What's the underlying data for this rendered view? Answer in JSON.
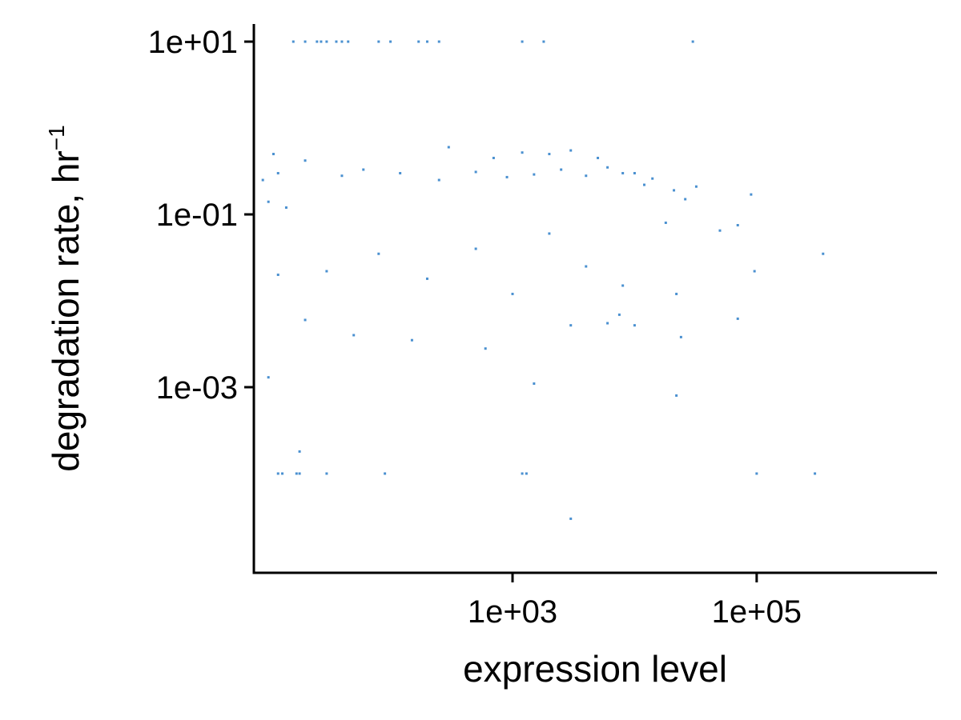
{
  "chart_data": {
    "type": "scatter",
    "xlabel": "expression level",
    "ylabel": "degradation rate, hr",
    "ylabel_superscript": "−1",
    "x_scale": "log10",
    "y_scale": "log10",
    "xlim": [
      7.6,
      3000000
    ],
    "ylim": [
      7.1e-06,
      16
    ],
    "x_ticks": [
      1000,
      100000
    ],
    "x_tick_labels": [
      "1e+03",
      "1e+05"
    ],
    "y_ticks": [
      0.001,
      0.1,
      10
    ],
    "y_tick_labels": [
      "1e-03",
      "1e-01",
      "1e+01"
    ],
    "point_color": "#4a90d0",
    "grid": false,
    "legend": "none",
    "series": [
      {
        "values": [
          [
            250,
            10
          ],
          [
            200,
            10
          ],
          [
            170,
            10
          ],
          [
            100,
            10
          ],
          [
            80,
            10
          ],
          [
            45,
            10
          ],
          [
            40,
            10
          ],
          [
            36,
            10
          ],
          [
            30,
            10
          ],
          [
            27,
            10
          ],
          [
            25,
            10
          ],
          [
            20,
            10
          ],
          [
            16,
            10
          ],
          [
            1200,
            10
          ],
          [
            1800,
            10
          ],
          [
            30000,
            10
          ],
          [
            12,
            0.0001
          ],
          [
            13,
            0.0001
          ],
          [
            17,
            0.0001
          ],
          [
            18,
            0.0001
          ],
          [
            30,
            0.0001
          ],
          [
            90,
            0.0001
          ],
          [
            1200,
            0.0001
          ],
          [
            1300,
            0.0001
          ],
          [
            300000.0,
            0.0001
          ],
          [
            100000.0,
            0.0001
          ],
          [
            3000,
            3e-05
          ],
          [
            18,
            0.00018
          ],
          [
            10,
            0.0013
          ],
          [
            1500,
            0.0011
          ],
          [
            22000,
            0.0008
          ],
          [
            350000.0,
            0.035
          ],
          [
            96000.0,
            0.022
          ],
          [
            70000.0,
            0.0062
          ],
          [
            50000.0,
            0.065
          ],
          [
            70000.0,
            0.075
          ],
          [
            90000.0,
            0.17
          ],
          [
            32000.0,
            0.21
          ],
          [
            26000.0,
            0.15
          ],
          [
            18000.0,
            0.08
          ],
          [
            22000.0,
            0.012
          ],
          [
            10000.0,
            0.0052
          ],
          [
            24000.0,
            0.0038
          ],
          [
            6000.0,
            0.0055
          ],
          [
            7500.0,
            0.0069
          ],
          [
            21000.0,
            0.19
          ],
          [
            10,
            0.14
          ],
          [
            14,
            0.12
          ],
          [
            12,
            0.3
          ],
          [
            11,
            0.5
          ],
          [
            9,
            0.25
          ],
          [
            40,
            0.28
          ],
          [
            60,
            0.33
          ],
          [
            120,
            0.3
          ],
          [
            250,
            0.25
          ],
          [
            500,
            0.31
          ],
          [
            900,
            0.27
          ],
          [
            1500,
            0.29
          ],
          [
            2500,
            0.33
          ],
          [
            4000,
            0.28
          ],
          [
            6000,
            0.35
          ],
          [
            8000,
            0.3
          ],
          [
            10000,
            0.3
          ],
          [
            12000,
            0.22
          ],
          [
            14000,
            0.26
          ],
          [
            20,
            0.42
          ],
          [
            300,
            0.6
          ],
          [
            700,
            0.45
          ],
          [
            1200,
            0.52
          ],
          [
            2000,
            0.5
          ],
          [
            3000,
            0.55
          ],
          [
            5000,
            0.45
          ],
          [
            30,
            0.022
          ],
          [
            80,
            0.035
          ],
          [
            200,
            0.018
          ],
          [
            500,
            0.04
          ],
          [
            1000,
            0.012
          ],
          [
            2000,
            0.06
          ],
          [
            4000,
            0.025
          ],
          [
            8000,
            0.015
          ],
          [
            12,
            0.02
          ],
          [
            20,
            0.006
          ],
          [
            50,
            0.004
          ],
          [
            150,
            0.0035
          ],
          [
            600,
            0.0028
          ],
          [
            3000,
            0.0052
          ]
        ]
      }
    ]
  }
}
